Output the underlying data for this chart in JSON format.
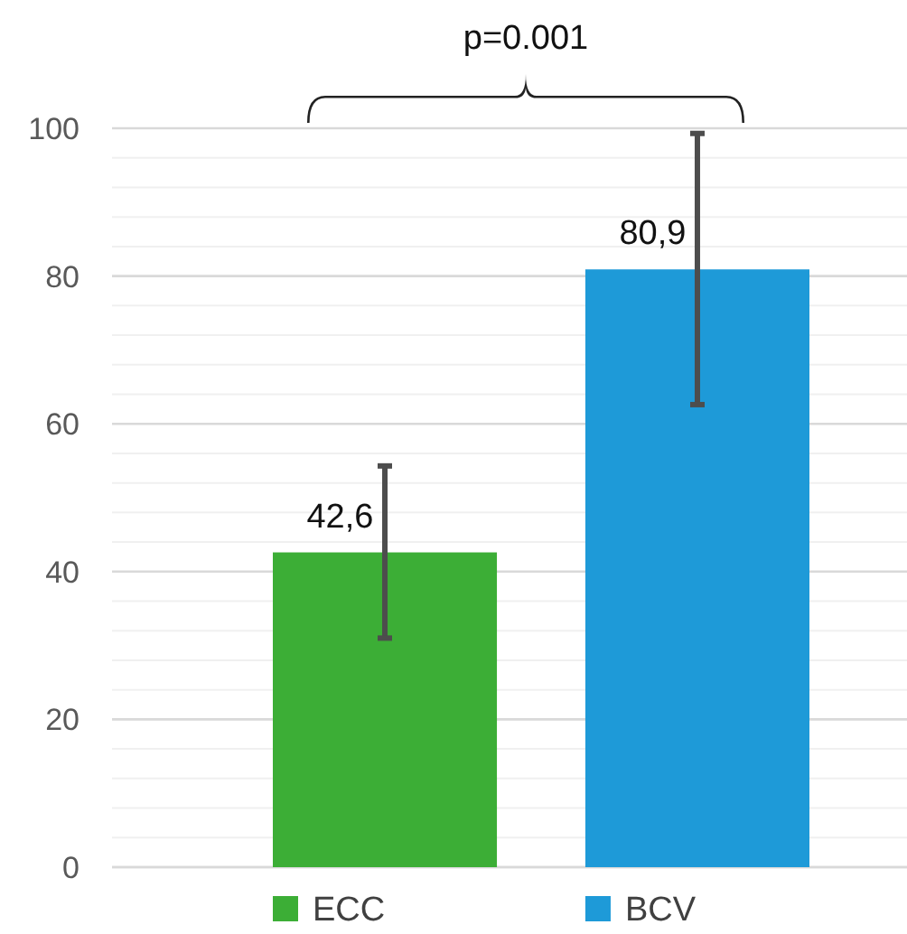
{
  "chart_data": {
    "type": "bar",
    "categories": [
      null
    ],
    "series": [
      {
        "name": "ECC",
        "color": "#3cae36",
        "values": [
          42.6
        ],
        "errors": [
          [
            31.0,
            54.3
          ]
        ],
        "value_labels": [
          "42,6"
        ]
      },
      {
        "name": "BCV",
        "color": "#1e9ad8",
        "values": [
          80.9
        ],
        "errors": [
          [
            62.6,
            99.3
          ]
        ],
        "value_labels": [
          "80,9"
        ]
      }
    ],
    "ylim": [
      0,
      100
    ],
    "yticks": [
      0,
      {
        "value": 4,
        "label": null
      },
      {
        "value": 8,
        "label": null
      },
      {
        "value": 12,
        "label": null
      },
      {
        "value": 16,
        "label": null
      },
      20,
      {
        "value": 24,
        "label": null
      },
      {
        "value": 28,
        "label": null
      },
      {
        "value": 32,
        "label": null
      },
      {
        "value": 36,
        "label": null
      },
      40,
      {
        "value": 44,
        "label": null
      },
      {
        "value": 48,
        "label": null
      },
      {
        "value": 52,
        "label": null
      },
      {
        "value": 56,
        "label": null
      },
      60,
      {
        "value": 64,
        "label": null
      },
      {
        "value": 68,
        "label": null
      },
      {
        "value": 72,
        "label": null
      },
      {
        "value": 76,
        "label": null
      },
      80,
      {
        "value": 84,
        "label": null
      },
      {
        "value": 88,
        "label": null
      },
      {
        "value": 92,
        "label": null
      },
      {
        "value": 96,
        "label": null
      },
      100
    ],
    "grid": "y",
    "legend": "bottom",
    "annotations": [
      "p=0.001"
    ]
  }
}
